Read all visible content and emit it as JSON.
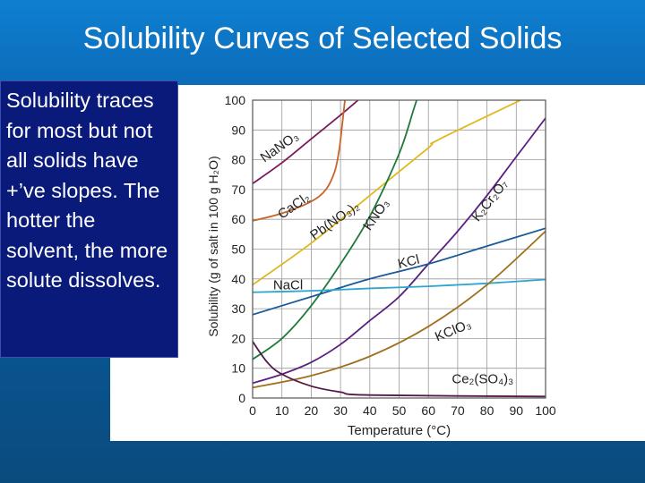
{
  "slide": {
    "title": "Solubility Curves of Selected Solids",
    "body_text": "Solubility traces for most but not all solids have +’ve slopes. The hotter the solvent, the more solute dissolves."
  },
  "colors": {
    "background": "#0a69b6",
    "textbox": "#0a1a7a",
    "grid": "#9a9a9a"
  },
  "chart_data": {
    "type": "line",
    "xlabel": "Temperature (°C)",
    "ylabel": "Solubility (g of salt in 100 g H₂O)",
    "xlim": [
      0,
      100
    ],
    "ylim": [
      0,
      100
    ],
    "x_ticks": [
      0,
      10,
      20,
      30,
      40,
      50,
      60,
      70,
      80,
      90,
      100
    ],
    "y_ticks": [
      0,
      10,
      20,
      30,
      40,
      50,
      60,
      70,
      80,
      90,
      100
    ],
    "grid": true,
    "series": [
      {
        "name": "NaNO₃",
        "color": "#7a1a5c",
        "points": [
          [
            0,
            72
          ],
          [
            10,
            79
          ],
          [
            20,
            87
          ],
          [
            30,
            95
          ],
          [
            36,
            100
          ]
        ]
      },
      {
        "name": "CaCl₂",
        "color": "#c8642a",
        "points": [
          [
            0,
            59.5
          ],
          [
            10,
            62
          ],
          [
            20,
            66
          ],
          [
            25,
            70
          ],
          [
            28,
            76
          ],
          [
            29.5,
            83
          ],
          [
            30.5,
            91
          ],
          [
            31.5,
            100
          ]
        ]
      },
      {
        "name": "Pb(NO₃)₂",
        "color": "#e0b81c",
        "points": [
          [
            0,
            38
          ],
          [
            20,
            52
          ],
          [
            40,
            68
          ],
          [
            60,
            84
          ],
          [
            64,
            87
          ],
          [
            100,
            104
          ]
        ]
      },
      {
        "name": "KNO₃",
        "color": "#1f7a3a",
        "points": [
          [
            0,
            13
          ],
          [
            10,
            20
          ],
          [
            20,
            31
          ],
          [
            30,
            45
          ],
          [
            40,
            61
          ],
          [
            50,
            82
          ],
          [
            55,
            97
          ],
          [
            56,
            100
          ]
        ]
      },
      {
        "name": "K₂Cr₂O₇",
        "color": "#5a2080",
        "points": [
          [
            0,
            5
          ],
          [
            10,
            8
          ],
          [
            20,
            12
          ],
          [
            30,
            18
          ],
          [
            40,
            26
          ],
          [
            50,
            34
          ],
          [
            60,
            45
          ],
          [
            70,
            56
          ],
          [
            80,
            68
          ],
          [
            90,
            81
          ],
          [
            100,
            94
          ]
        ]
      },
      {
        "name": "KCl",
        "color": "#1a5a9a",
        "points": [
          [
            0,
            28
          ],
          [
            20,
            34
          ],
          [
            40,
            40
          ],
          [
            60,
            45
          ],
          [
            80,
            51
          ],
          [
            100,
            57
          ]
        ]
      },
      {
        "name": "NaCl",
        "color": "#2aa6d0",
        "points": [
          [
            0,
            35.5
          ],
          [
            20,
            36
          ],
          [
            40,
            36.8
          ],
          [
            60,
            37.5
          ],
          [
            80,
            38.5
          ],
          [
            100,
            39.8
          ]
        ]
      },
      {
        "name": "KClO₃",
        "color": "#a0701e",
        "points": [
          [
            0,
            3.5
          ],
          [
            20,
            7.5
          ],
          [
            40,
            14
          ],
          [
            60,
            24
          ],
          [
            80,
            38
          ],
          [
            100,
            56
          ]
        ]
      },
      {
        "name": "Ce₂(SO₄)₃",
        "color": "#551848",
        "points": [
          [
            0,
            19
          ],
          [
            5,
            12
          ],
          [
            10,
            8
          ],
          [
            20,
            4
          ],
          [
            30,
            2
          ],
          [
            40,
            1
          ],
          [
            100,
            0.5
          ]
        ]
      }
    ],
    "labels": [
      {
        "text": "NaNO₃",
        "x": 4,
        "y": 79,
        "rotate": -35,
        "color": "#222"
      },
      {
        "text": "CaCl₂",
        "x": 10,
        "y": 60,
        "rotate": -35,
        "color": "#222"
      },
      {
        "text": "Pb(NO₃)₂",
        "x": 21,
        "y": 53,
        "rotate": -35,
        "color": "#222"
      },
      {
        "text": "KNO₃",
        "x": 40,
        "y": 56,
        "rotate": -55,
        "color": "#222"
      },
      {
        "text": "K₂Cr₂O₇",
        "x": 77,
        "y": 59,
        "rotate": -52,
        "color": "#222"
      },
      {
        "text": "KCl",
        "x": 50,
        "y": 43.5,
        "rotate": -14,
        "color": "#222"
      },
      {
        "text": "NaCl",
        "x": 7,
        "y": 36.5,
        "rotate": 0,
        "color": "#222"
      },
      {
        "text": "KClO₃",
        "x": 63,
        "y": 19,
        "rotate": -22,
        "color": "#222"
      },
      {
        "text": "Ce₂(SO₄)₃",
        "x": 68,
        "y": 5,
        "rotate": 0,
        "color": "#222"
      }
    ]
  }
}
